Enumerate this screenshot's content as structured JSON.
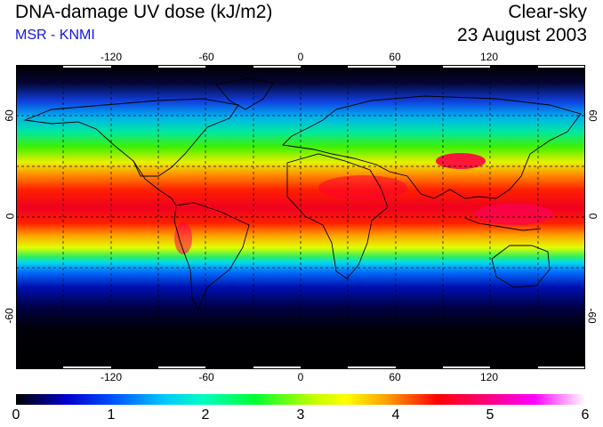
{
  "header": {
    "title": "DNA-damage UV dose (kJ/m2)",
    "subtitle": "MSR - KNMI",
    "sky_condition": "Clear-sky",
    "date": "23 August 2003"
  },
  "map": {
    "projection": "equirectangular",
    "lon_range": [
      -180,
      180
    ],
    "lat_range": [
      -90,
      90
    ],
    "lon_ticks": [
      "-120",
      "-60",
      "0",
      "60",
      "120"
    ],
    "lat_ticks": [
      "60",
      "0",
      "-60"
    ],
    "gridlines": "dashed every 30 degrees"
  },
  "colorbar": {
    "labels": [
      "0",
      "1",
      "2",
      "3",
      "4",
      "5",
      "6"
    ],
    "colors": [
      "#000000",
      "#0000d0",
      "#0080ff",
      "#00ffff",
      "#00ff60",
      "#60ff00",
      "#ffff00",
      "#ffa000",
      "#ff0000",
      "#ff0080",
      "#ff00ff",
      "#ffffff"
    ]
  }
}
